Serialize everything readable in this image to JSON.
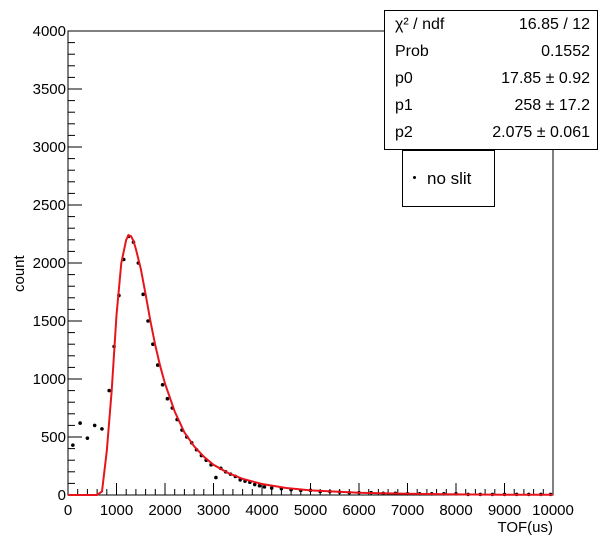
{
  "chart_data": {
    "type": "scatter",
    "title": "",
    "xlabel": "TOF(us)",
    "ylabel": "count",
    "xlim": [
      0,
      10000
    ],
    "ylim": [
      0,
      4000
    ],
    "x_ticks": [
      "0",
      "1000",
      "2000",
      "3000",
      "4000",
      "5000",
      "6000",
      "7000",
      "8000",
      "9000",
      "10000"
    ],
    "y_ticks": [
      "0",
      "500",
      "1000",
      "1500",
      "2000",
      "2500",
      "3000",
      "3500",
      "4000"
    ],
    "grid": false,
    "legend": {
      "placement": "top-right",
      "entries": [
        {
          "label": "no slit",
          "marker": "dot"
        }
      ]
    },
    "series": [
      {
        "name": "no slit",
        "kind": "points",
        "color": "#000000",
        "x": [
          100,
          250,
          400,
          550,
          700,
          850,
          950,
          1050,
          1150,
          1250,
          1350,
          1450,
          1550,
          1650,
          1750,
          1850,
          1950,
          2050,
          2150,
          2250,
          2350,
          2450,
          2550,
          2650,
          2750,
          2850,
          2950,
          3050,
          3150,
          3250,
          3350,
          3450,
          3550,
          3650,
          3750,
          3850,
          3950,
          4050,
          4200,
          4400,
          4600,
          4800,
          5000,
          5200,
          5400,
          5600,
          5800,
          6000,
          6250,
          6500,
          6750,
          7000,
          7250,
          7500,
          7750,
          8000,
          8250,
          8500,
          8750,
          9000,
          9250,
          9500,
          9750,
          9950
        ],
        "y": [
          430,
          620,
          490,
          600,
          570,
          900,
          1280,
          1720,
          2030,
          2230,
          2180,
          2000,
          1730,
          1500,
          1300,
          1120,
          950,
          830,
          750,
          650,
          560,
          500,
          450,
          390,
          340,
          300,
          260,
          150,
          230,
          200,
          180,
          160,
          130,
          120,
          110,
          90,
          80,
          70,
          60,
          55,
          45,
          40,
          40,
          30,
          30,
          25,
          20,
          20,
          20,
          15,
          15,
          10,
          10,
          10,
          10,
          10,
          5,
          5,
          5,
          5,
          5,
          5,
          5,
          5
        ]
      },
      {
        "name": "fit",
        "kind": "line",
        "color": "#e8141c",
        "x": [
          0,
          300,
          600,
          700,
          800,
          900,
          1000,
          1100,
          1200,
          1250,
          1300,
          1350,
          1400,
          1500,
          1600,
          1700,
          1800,
          1900,
          2000,
          2200,
          2400,
          2600,
          2800,
          3000,
          3300,
          3600,
          4000,
          4500,
          5000,
          6000,
          7000,
          8000,
          9000,
          10000
        ],
        "y": [
          0,
          0,
          0,
          30,
          380,
          900,
          1550,
          2000,
          2200,
          2240,
          2230,
          2190,
          2120,
          1950,
          1730,
          1500,
          1290,
          1110,
          960,
          720,
          540,
          420,
          330,
          260,
          190,
          140,
          95,
          60,
          40,
          20,
          10,
          5,
          3,
          2
        ]
      }
    ]
  },
  "stats": [
    {
      "name": "χ² / ndf",
      "value": "16.85 / 12"
    },
    {
      "name": "Prob",
      "value": "0.1552"
    },
    {
      "name": "p0",
      "value": "17.85 ± 0.92"
    },
    {
      "name": "p1",
      "value": "258 ± 17.2"
    },
    {
      "name": "p2",
      "value": "2.075 ± 0.061"
    }
  ]
}
